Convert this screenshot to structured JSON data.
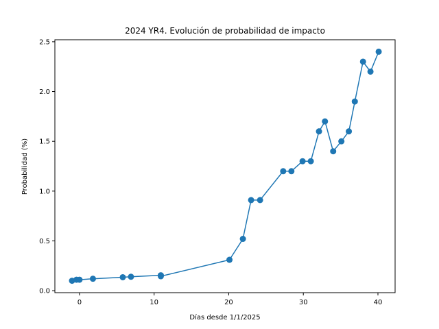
{
  "chart_data": {
    "type": "line",
    "title": "2024 YR4. Evolución de probabilidad de impacto",
    "xlabel": "Días desde 1/1/2025",
    "ylabel": "Probabilidad (%)",
    "xlim": [
      -3.3,
      42.3
    ],
    "ylim": [
      -0.02,
      2.52
    ],
    "xticks": [
      0,
      10,
      20,
      30,
      40
    ],
    "yticks": [
      0.0,
      0.5,
      1.0,
      1.5,
      2.0,
      2.5
    ],
    "xtick_labels": [
      "0",
      "10",
      "20",
      "30",
      "40"
    ],
    "ytick_labels": [
      "0.0",
      "0.5",
      "1.0",
      "1.5",
      "2.0",
      "2.5"
    ],
    "grid": false,
    "color": "#1f77b4",
    "series": [
      {
        "x": [
          -1,
          -0.4,
          0,
          1.8,
          5.8,
          6.9,
          10.9,
          10.9,
          20.1,
          21.9,
          23,
          24.2,
          27.3,
          28.4,
          29.9,
          31,
          32.1,
          32.9,
          34,
          35.1,
          36.1,
          36.9,
          38,
          39,
          40.1
        ],
        "y": [
          0.1,
          0.11,
          0.11,
          0.12,
          0.135,
          0.14,
          0.155,
          0.145,
          0.31,
          0.52,
          0.91,
          0.91,
          1.2,
          1.2,
          1.3,
          1.3,
          1.6,
          1.7,
          1.4,
          1.5,
          1.6,
          1.9,
          2.3,
          2.2,
          2.4
        ]
      }
    ]
  }
}
